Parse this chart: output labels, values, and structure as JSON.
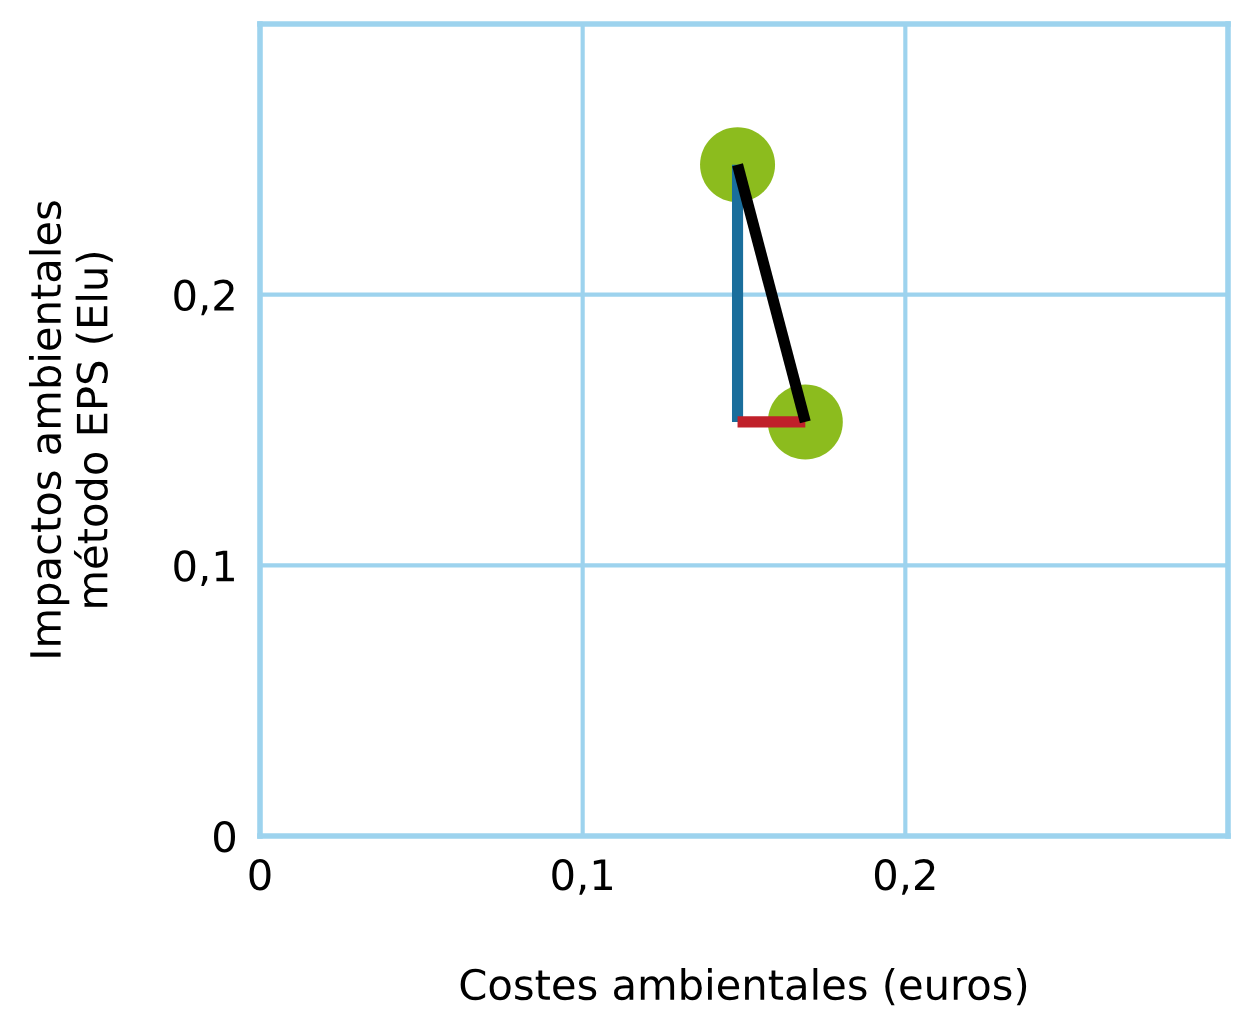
{
  "chart_data": {
    "type": "scatter",
    "xlabel": "Costes ambientales (euros)",
    "ylabel": "Impactos ambientales\nmétodo EPS (Elu)",
    "xlim": [
      0,
      0.3
    ],
    "ylim": [
      0,
      0.3
    ],
    "xticks": [
      {
        "value": 0,
        "label": "0"
      },
      {
        "value": 0.1,
        "label": "0,1"
      },
      {
        "value": 0.2,
        "label": "0,2"
      }
    ],
    "yticks": [
      {
        "value": 0,
        "label": "0"
      },
      {
        "value": 0.1,
        "label": "0,1"
      },
      {
        "value": 0.2,
        "label": "0,2"
      }
    ],
    "grid": true,
    "x": [
      0.148,
      0.169
    ],
    "series": [
      {
        "color": "#8cbc1e",
        "marker": "circle",
        "values": [
          0.248,
          0.153
        ]
      },
      {
        "type": "line",
        "color": "#1a6e9c",
        "marker": "none",
        "x": [
          0.148,
          0.148
        ],
        "values": [
          0.248,
          0.153
        ]
      },
      {
        "type": "line",
        "color": "#c0202a",
        "marker": "none",
        "values": [
          0.153,
          0.153
        ]
      },
      {
        "type": "line",
        "color": "#000000",
        "marker": "none",
        "values": [
          0.248,
          0.153
        ]
      }
    ]
  }
}
